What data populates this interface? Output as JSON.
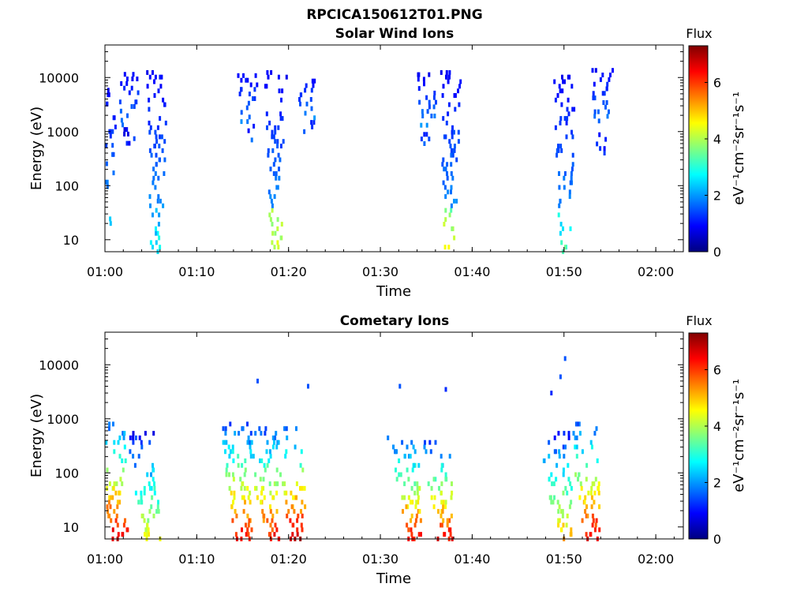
{
  "figure_title": "RPCICA150612T01.PNG",
  "colormap": [
    "#000080",
    "#0000ff",
    "#0080ff",
    "#00ffff",
    "#80ff80",
    "#ffff00",
    "#ff8000",
    "#ff0000",
    "#800000"
  ],
  "chart_data": [
    {
      "type": "heatmap",
      "title": "Solar Wind Ions",
      "xlabel": "Time",
      "ylabel": "Energy (eV)",
      "y_scale": "log",
      "xlim": [
        "01:00",
        "02:03"
      ],
      "ylim": [
        6,
        40000
      ],
      "x_ticks": [
        "01:00",
        "01:10",
        "01:20",
        "01:30",
        "01:40",
        "01:50",
        "02:00"
      ],
      "y_ticks": [
        "10",
        "100",
        "1000",
        "10000"
      ],
      "colorbar": {
        "title": "Flux",
        "label": "eV⁻¹cm⁻²sr⁻¹s⁻¹",
        "range": [
          0,
          7.3
        ],
        "ticks": [
          "0",
          "2",
          "4",
          "6"
        ]
      },
      "grid": false,
      "bursts": [
        {
          "t": "01:00",
          "e_min": 20,
          "e_max": 6000,
          "peak_flux": 2.8
        },
        {
          "t": "01:02.5",
          "e_min": 500,
          "e_max": 12000,
          "peak_flux": 1.8
        },
        {
          "t": "01:05.5",
          "e_min": 6,
          "e_max": 14000,
          "peak_flux": 3.2
        },
        {
          "t": "01:15.5",
          "e_min": 700,
          "e_max": 12000,
          "peak_flux": 1.8
        },
        {
          "t": "01:18.5",
          "e_min": 6,
          "e_max": 14000,
          "peak_flux": 4.8
        },
        {
          "t": "01:22",
          "e_min": 1000,
          "e_max": 10000,
          "peak_flux": 1.8
        },
        {
          "t": "01:35",
          "e_min": 600,
          "e_max": 12000,
          "peak_flux": 1.8
        },
        {
          "t": "01:37.5",
          "e_min": 6,
          "e_max": 13000,
          "peak_flux": 4.8
        },
        {
          "t": "01:50",
          "e_min": 6,
          "e_max": 11000,
          "peak_flux": 3.6
        },
        {
          "t": "01:54",
          "e_min": 400,
          "e_max": 15000,
          "peak_flux": 1.8
        }
      ]
    },
    {
      "type": "heatmap",
      "title": "Cometary Ions",
      "xlabel": "Time",
      "ylabel": "Energy (eV)",
      "y_scale": "log",
      "xlim": [
        "01:00",
        "02:03"
      ],
      "ylim": [
        6,
        40000
      ],
      "x_ticks": [
        "01:00",
        "01:10",
        "01:20",
        "01:30",
        "01:40",
        "01:50",
        "02:00"
      ],
      "y_ticks": [
        "10",
        "100",
        "1000",
        "10000"
      ],
      "colorbar": {
        "title": "Flux",
        "label": "eV⁻¹cm⁻²sr⁻¹s⁻¹",
        "range": [
          0,
          7.3
        ],
        "ticks": [
          "0",
          "2",
          "4",
          "6"
        ]
      },
      "grid": false,
      "bursts": [
        {
          "t": "01:01.5",
          "e_min": 6,
          "e_max": 900,
          "peak_flux": 7.2
        },
        {
          "t": "01:05",
          "e_min": 6,
          "e_max": 600,
          "peak_flux": 5.0
        },
        {
          "t": "01:15",
          "e_min": 6,
          "e_max": 900,
          "peak_flux": 6.8
        },
        {
          "t": "01:18",
          "e_min": 6,
          "e_max": 700,
          "peak_flux": 6.8
        },
        {
          "t": "01:21",
          "e_min": 6,
          "e_max": 800,
          "peak_flux": 7.2
        },
        {
          "t": "01:33.5",
          "e_min": 6,
          "e_max": 500,
          "peak_flux": 6.8
        },
        {
          "t": "01:37",
          "e_min": 6,
          "e_max": 400,
          "peak_flux": 6.8
        },
        {
          "t": "01:50",
          "e_min": 6,
          "e_max": 600,
          "peak_flux": 5.5
        },
        {
          "t": "01:53",
          "e_min": 6,
          "e_max": 900,
          "peak_flux": 7.0
        }
      ],
      "isolated_points": [
        {
          "t": "01:16.5",
          "e": 5000,
          "flux": 1.5
        },
        {
          "t": "01:22",
          "e": 4000,
          "flux": 1.5
        },
        {
          "t": "01:32",
          "e": 4000,
          "flux": 1.5
        },
        {
          "t": "01:37",
          "e": 3500,
          "flux": 1.2
        },
        {
          "t": "01:48.5",
          "e": 3000,
          "flux": 1.2
        },
        {
          "t": "01:49.5",
          "e": 6000,
          "flux": 1.5
        },
        {
          "t": "01:50",
          "e": 13000,
          "flux": 1.5
        }
      ]
    }
  ]
}
